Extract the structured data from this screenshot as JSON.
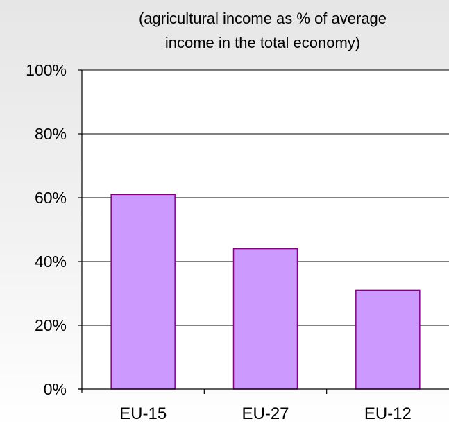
{
  "chart_data": {
    "type": "bar",
    "subtitle_lines": [
      "(agricultural income as % of average",
      "income in the total economy)"
    ],
    "categories": [
      "EU-15",
      "EU-27",
      "EU-12"
    ],
    "values": [
      61,
      44,
      31
    ],
    "ylim": [
      0,
      100
    ],
    "y_ticks": [
      0,
      20,
      40,
      60,
      80,
      100
    ],
    "y_tick_labels": [
      "0%",
      "20%",
      "40%",
      "60%",
      "80%",
      "100%"
    ],
    "grid": true,
    "colors": {
      "bar_fill": "#cc99ff",
      "bar_stroke": "#800080",
      "axis": "#000000",
      "plot_background": "#ffffff"
    }
  }
}
